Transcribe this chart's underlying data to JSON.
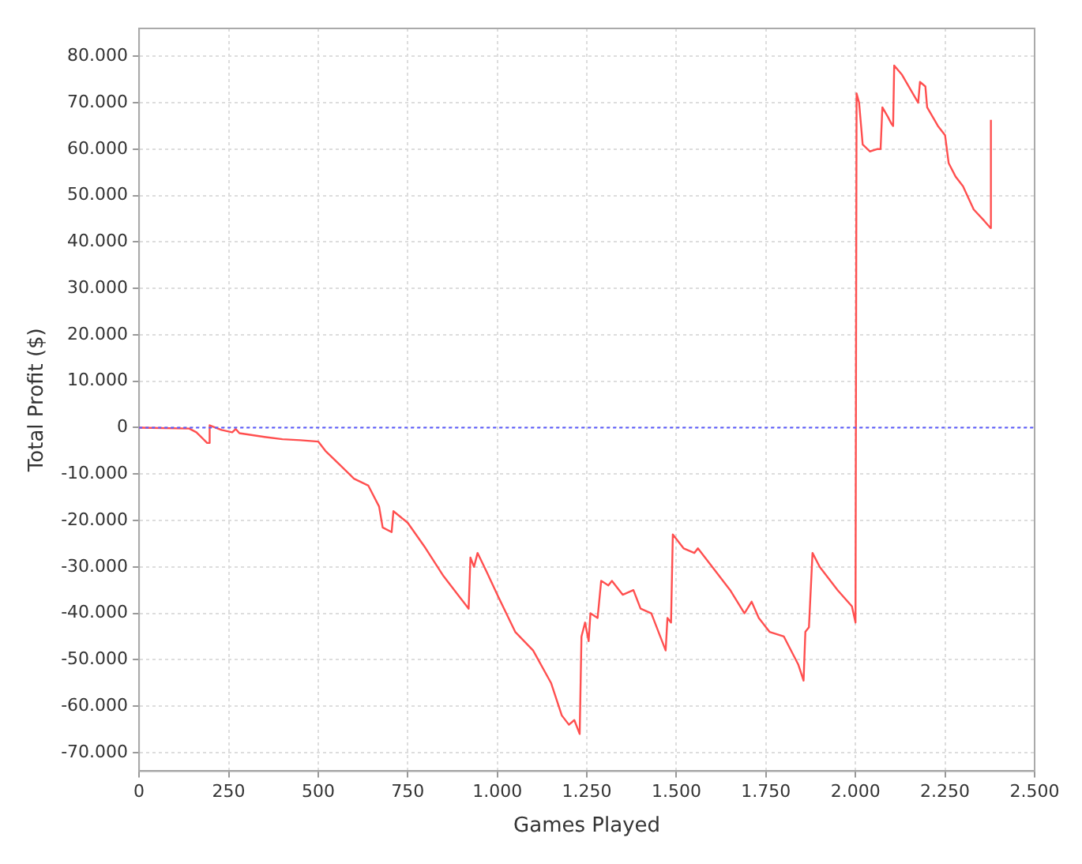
{
  "chart_data": {
    "type": "line",
    "xlabel": "Games Played",
    "ylabel": "Total Profit ($)",
    "x": [
      0,
      140,
      160,
      190,
      195,
      197,
      230,
      260,
      270,
      280,
      350,
      400,
      450,
      500,
      520,
      560,
      600,
      640,
      670,
      680,
      705,
      710,
      750,
      800,
      850,
      900,
      920,
      925,
      935,
      945,
      970,
      1000,
      1050,
      1100,
      1150,
      1180,
      1200,
      1215,
      1230,
      1235,
      1245,
      1255,
      1260,
      1280,
      1290,
      1310,
      1320,
      1350,
      1380,
      1400,
      1430,
      1460,
      1470,
      1475,
      1485,
      1490,
      1520,
      1550,
      1560,
      1600,
      1650,
      1690,
      1710,
      1730,
      1760,
      1800,
      1840,
      1855,
      1860,
      1870,
      1880,
      1900,
      1950,
      1990,
      2000,
      2003,
      2010,
      2020,
      2040,
      2060,
      2070,
      2075,
      2090,
      2100,
      2105,
      2108,
      2130,
      2160,
      2175,
      2180,
      2195,
      2200,
      2230,
      2250,
      2260,
      2280,
      2300,
      2330,
      2360,
      2377,
      2378
    ],
    "series": [
      {
        "color": "#ff4f4f",
        "values": [
          0,
          -200,
          -1000,
          -3300,
          -3300,
          500,
          -500,
          -1000,
          -300,
          -1200,
          -2000,
          -2500,
          -2700,
          -3000,
          -5000,
          -8000,
          -11000,
          -12500,
          -17000,
          -21500,
          -22500,
          -18000,
          -20500,
          -26000,
          -32000,
          -37000,
          -39000,
          -28000,
          -30000,
          -27000,
          -31000,
          -36000,
          -44000,
          -48000,
          -55000,
          -62000,
          -64000,
          -63000,
          -66000,
          -45000,
          -42000,
          -46000,
          -40000,
          -41000,
          -33000,
          -34000,
          -33000,
          -36000,
          -35000,
          -39000,
          -40000,
          -46000,
          -48000,
          -41000,
          -42000,
          -23000,
          -26000,
          -27000,
          -26000,
          -30000,
          -35000,
          -40000,
          -37500,
          -41000,
          -44000,
          -45000,
          -51000,
          -54500,
          -44000,
          -43000,
          -27000,
          -30000,
          -35000,
          -38500,
          -42000,
          72000,
          70000,
          61000,
          59500,
          60000,
          60000,
          69000,
          67000,
          65500,
          65000,
          78000,
          76000,
          72000,
          70000,
          74500,
          73500,
          69000,
          65000,
          63000,
          57000,
          54000,
          52000,
          47000,
          44500,
          43000,
          66300
        ]
      }
    ],
    "xlim": [
      0,
      2500
    ],
    "xticks": [
      0,
      250,
      500,
      750,
      {
        "value": 1000,
        "label": "1.000"
      },
      {
        "value": 1250,
        "label": "1.250"
      },
      {
        "value": 1500,
        "label": "1.500"
      },
      {
        "value": 1750,
        "label": "1.750"
      },
      {
        "value": 2000,
        "label": "2.000"
      },
      {
        "value": 2250,
        "label": "2.250"
      },
      {
        "value": 2500,
        "label": "2.500"
      }
    ],
    "ylim": [
      -74000,
      86000
    ],
    "yticks": [
      {
        "value": -70000,
        "label": "-70.000"
      },
      {
        "value": -60000,
        "label": "-60.000"
      },
      {
        "value": -50000,
        "label": "-50.000"
      },
      {
        "value": -40000,
        "label": "-40.000"
      },
      {
        "value": -30000,
        "label": "-30.000"
      },
      {
        "value": -20000,
        "label": "-20.000"
      },
      {
        "value": -10000,
        "label": "-10.000"
      },
      0,
      {
        "value": 10000,
        "label": "10.000"
      },
      {
        "value": 20000,
        "label": "20.000"
      },
      {
        "value": 30000,
        "label": "30.000"
      },
      {
        "value": 40000,
        "label": "40.000"
      },
      {
        "value": 50000,
        "label": "50.000"
      },
      {
        "value": 60000,
        "label": "60.000"
      },
      {
        "value": 70000,
        "label": "70.000"
      },
      {
        "value": 80000,
        "label": "80.000"
      }
    ],
    "ref_lines": [
      {
        "axis": "y",
        "value": 0,
        "color": "#5a5aff",
        "line_style": "dotted"
      }
    ],
    "grid": true,
    "legend": false,
    "marker": "none",
    "line_style": "solid"
  }
}
